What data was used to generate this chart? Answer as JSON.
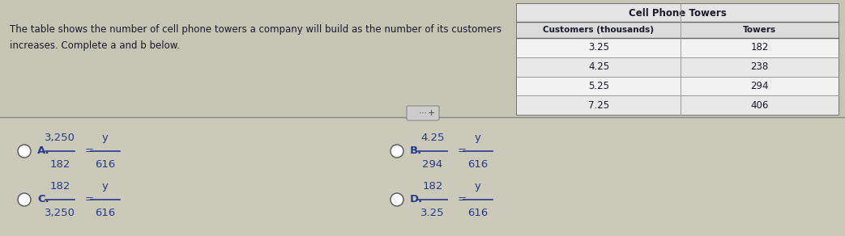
{
  "bg_color": "#c5c5b5",
  "top_bg": "#c5c5b5",
  "bottom_bg": "#cac9ba",
  "description": "The table shows the number of cell phone towers a company will build as the number of its customers\nincreases. Complete a and b below.",
  "table_title": "Cell Phone Towers",
  "col1_header": "Customers (thousands)",
  "col2_header": "Towers",
  "table_data": [
    [
      "3.25",
      "182"
    ],
    [
      "4.25",
      "238"
    ],
    [
      "5.25",
      "294"
    ],
    [
      "7.25",
      "406"
    ]
  ],
  "options": [
    {
      "label": "A.",
      "n1": "3,250",
      "d1": "182",
      "n2": "y",
      "d2": "616"
    },
    {
      "label": "B.",
      "n1": "4.25",
      "d1": "294",
      "n2": "y",
      "d2": "616"
    },
    {
      "label": "C.",
      "n1": "182",
      "d1": "3,250",
      "n2": "y",
      "d2": "616"
    },
    {
      "label": "D.",
      "n1": "182",
      "d1": "3.25",
      "n2": "y",
      "d2": "616"
    }
  ],
  "text_color": "#1a1a2a",
  "option_text_color": "#2a3a8a",
  "table_border": "#666666",
  "table_line": "#999999",
  "table_bg_white": "#f2f2f2",
  "table_bg_gray": "#e8e8e8",
  "table_header_bg": "#dcdcdc",
  "table_title_bg": "#e4e4e4"
}
